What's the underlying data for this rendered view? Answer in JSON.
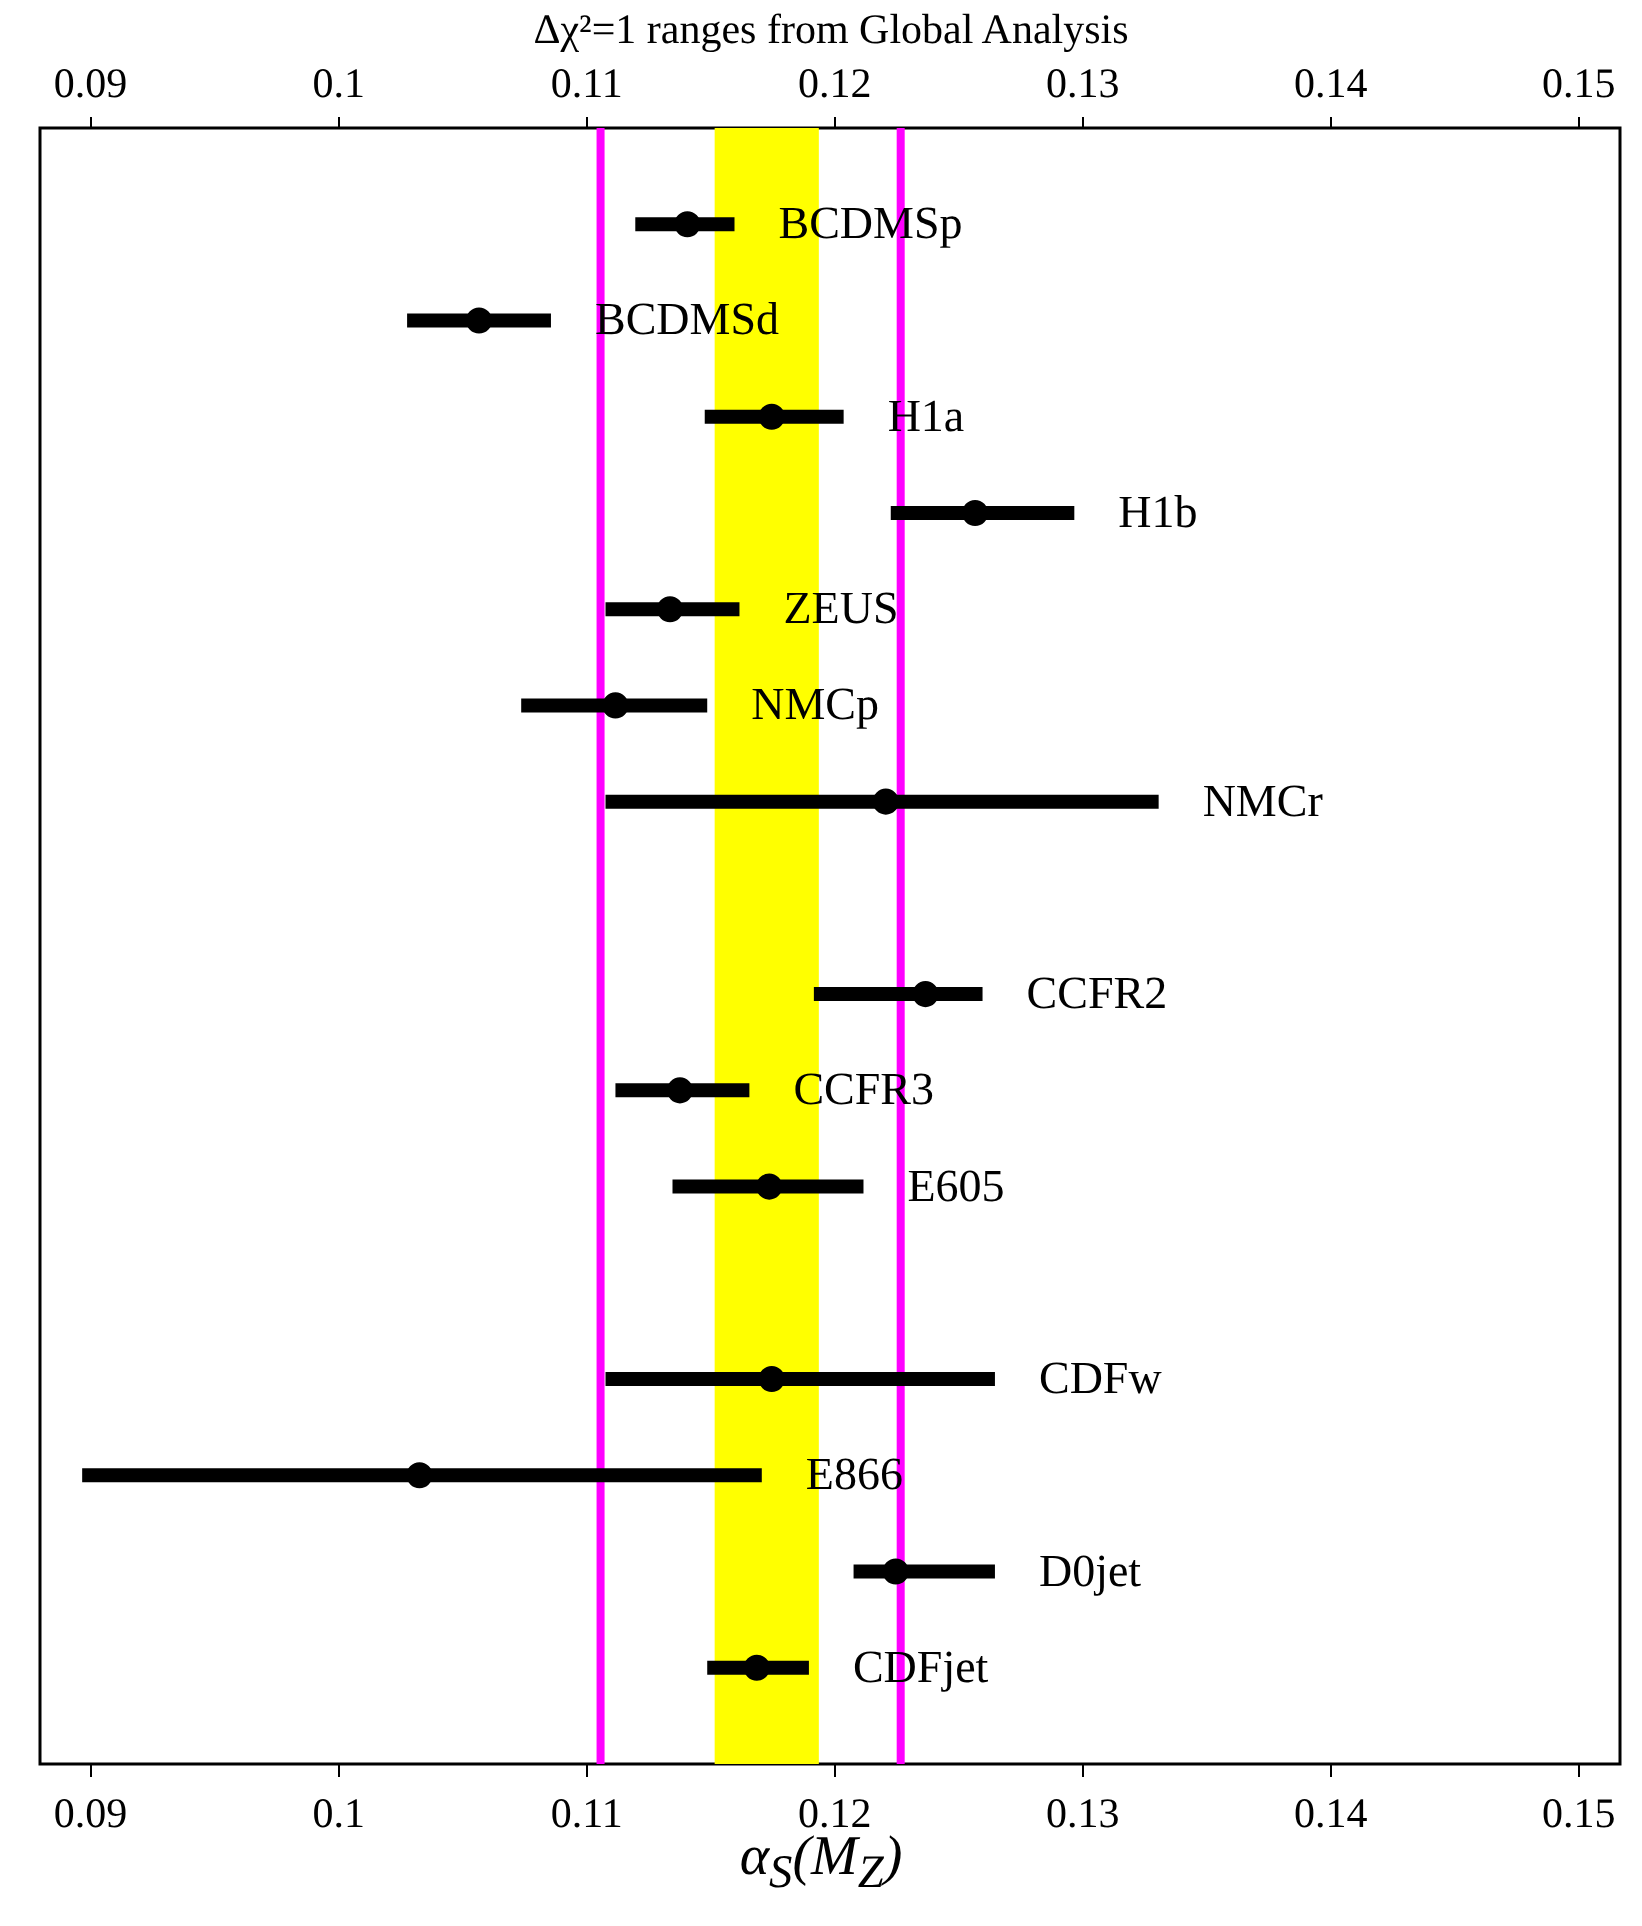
{
  "chart_data": {
    "type": "scatter",
    "orientation": "horizontal",
    "x2label": "Δχ²=1 ranges from Global Analysis",
    "xlabel": "α$_{S}$(M$_{Z}$)",
    "categories": [
      "BCDMSp",
      "BCDMSd",
      "H1a",
      "H1b",
      "ZEUS",
      "NMCp",
      "NMCr",
      null,
      "CCFR2",
      "CCFR3",
      "E605",
      null,
      "CDFw",
      "E866",
      "D0jet",
      "CDFjet"
    ],
    "values": [
      0.1141,
      0.1057,
      0.1175,
      0.1257,
      0.1134,
      0.1112,
      0.1221,
      null,
      0.1237,
      0.1138,
      0.1174,
      null,
      0.1175,
      0.1033,
      0.1225,
      0.1169
    ],
    "errors": [
      [
        0.112,
        0.116
      ],
      [
        0.1028,
        0.1086
      ],
      [
        0.1148,
        0.1204
      ],
      [
        0.1223,
        0.1297
      ],
      [
        0.1108,
        0.1162
      ],
      [
        0.1074,
        0.1149
      ],
      [
        0.1108,
        0.1331
      ],
      null,
      [
        0.1192,
        0.126
      ],
      [
        0.1112,
        0.1166
      ],
      [
        0.1135,
        0.1212
      ],
      null,
      [
        0.1108,
        0.1265
      ],
      [
        0.0897,
        0.1171
      ],
      [
        0.1208,
        0.1265
      ],
      [
        0.1149,
        0.119
      ]
    ],
    "color": "#000000",
    "marker": "circle",
    "xlim": [
      0.088,
      0.1517
    ],
    "xticks": [
      0.09,
      0.1,
      0.11,
      0.12,
      0.13,
      0.14,
      0.15
    ],
    "x2lim": [
      0.088,
      0.1517
    ],
    "x2ticks": [
      0.09,
      0.1,
      0.11,
      0.12,
      0.13,
      0.14,
      0.15
    ],
    "tick_labels": "x",
    "grid": false,
    "ref_lines": [
      {
        "axis": "x",
        "value": 0.1106,
        "label": null,
        "color": "#ff00ff"
      },
      {
        "axis": "x",
        "value": 0.1227,
        "label": null,
        "color": "#ff00ff"
      }
    ],
    "bands": [
      {
        "axis": "x",
        "from": 0.1152,
        "to": 0.1194,
        "label": null,
        "color": "#ffff00"
      }
    ]
  }
}
